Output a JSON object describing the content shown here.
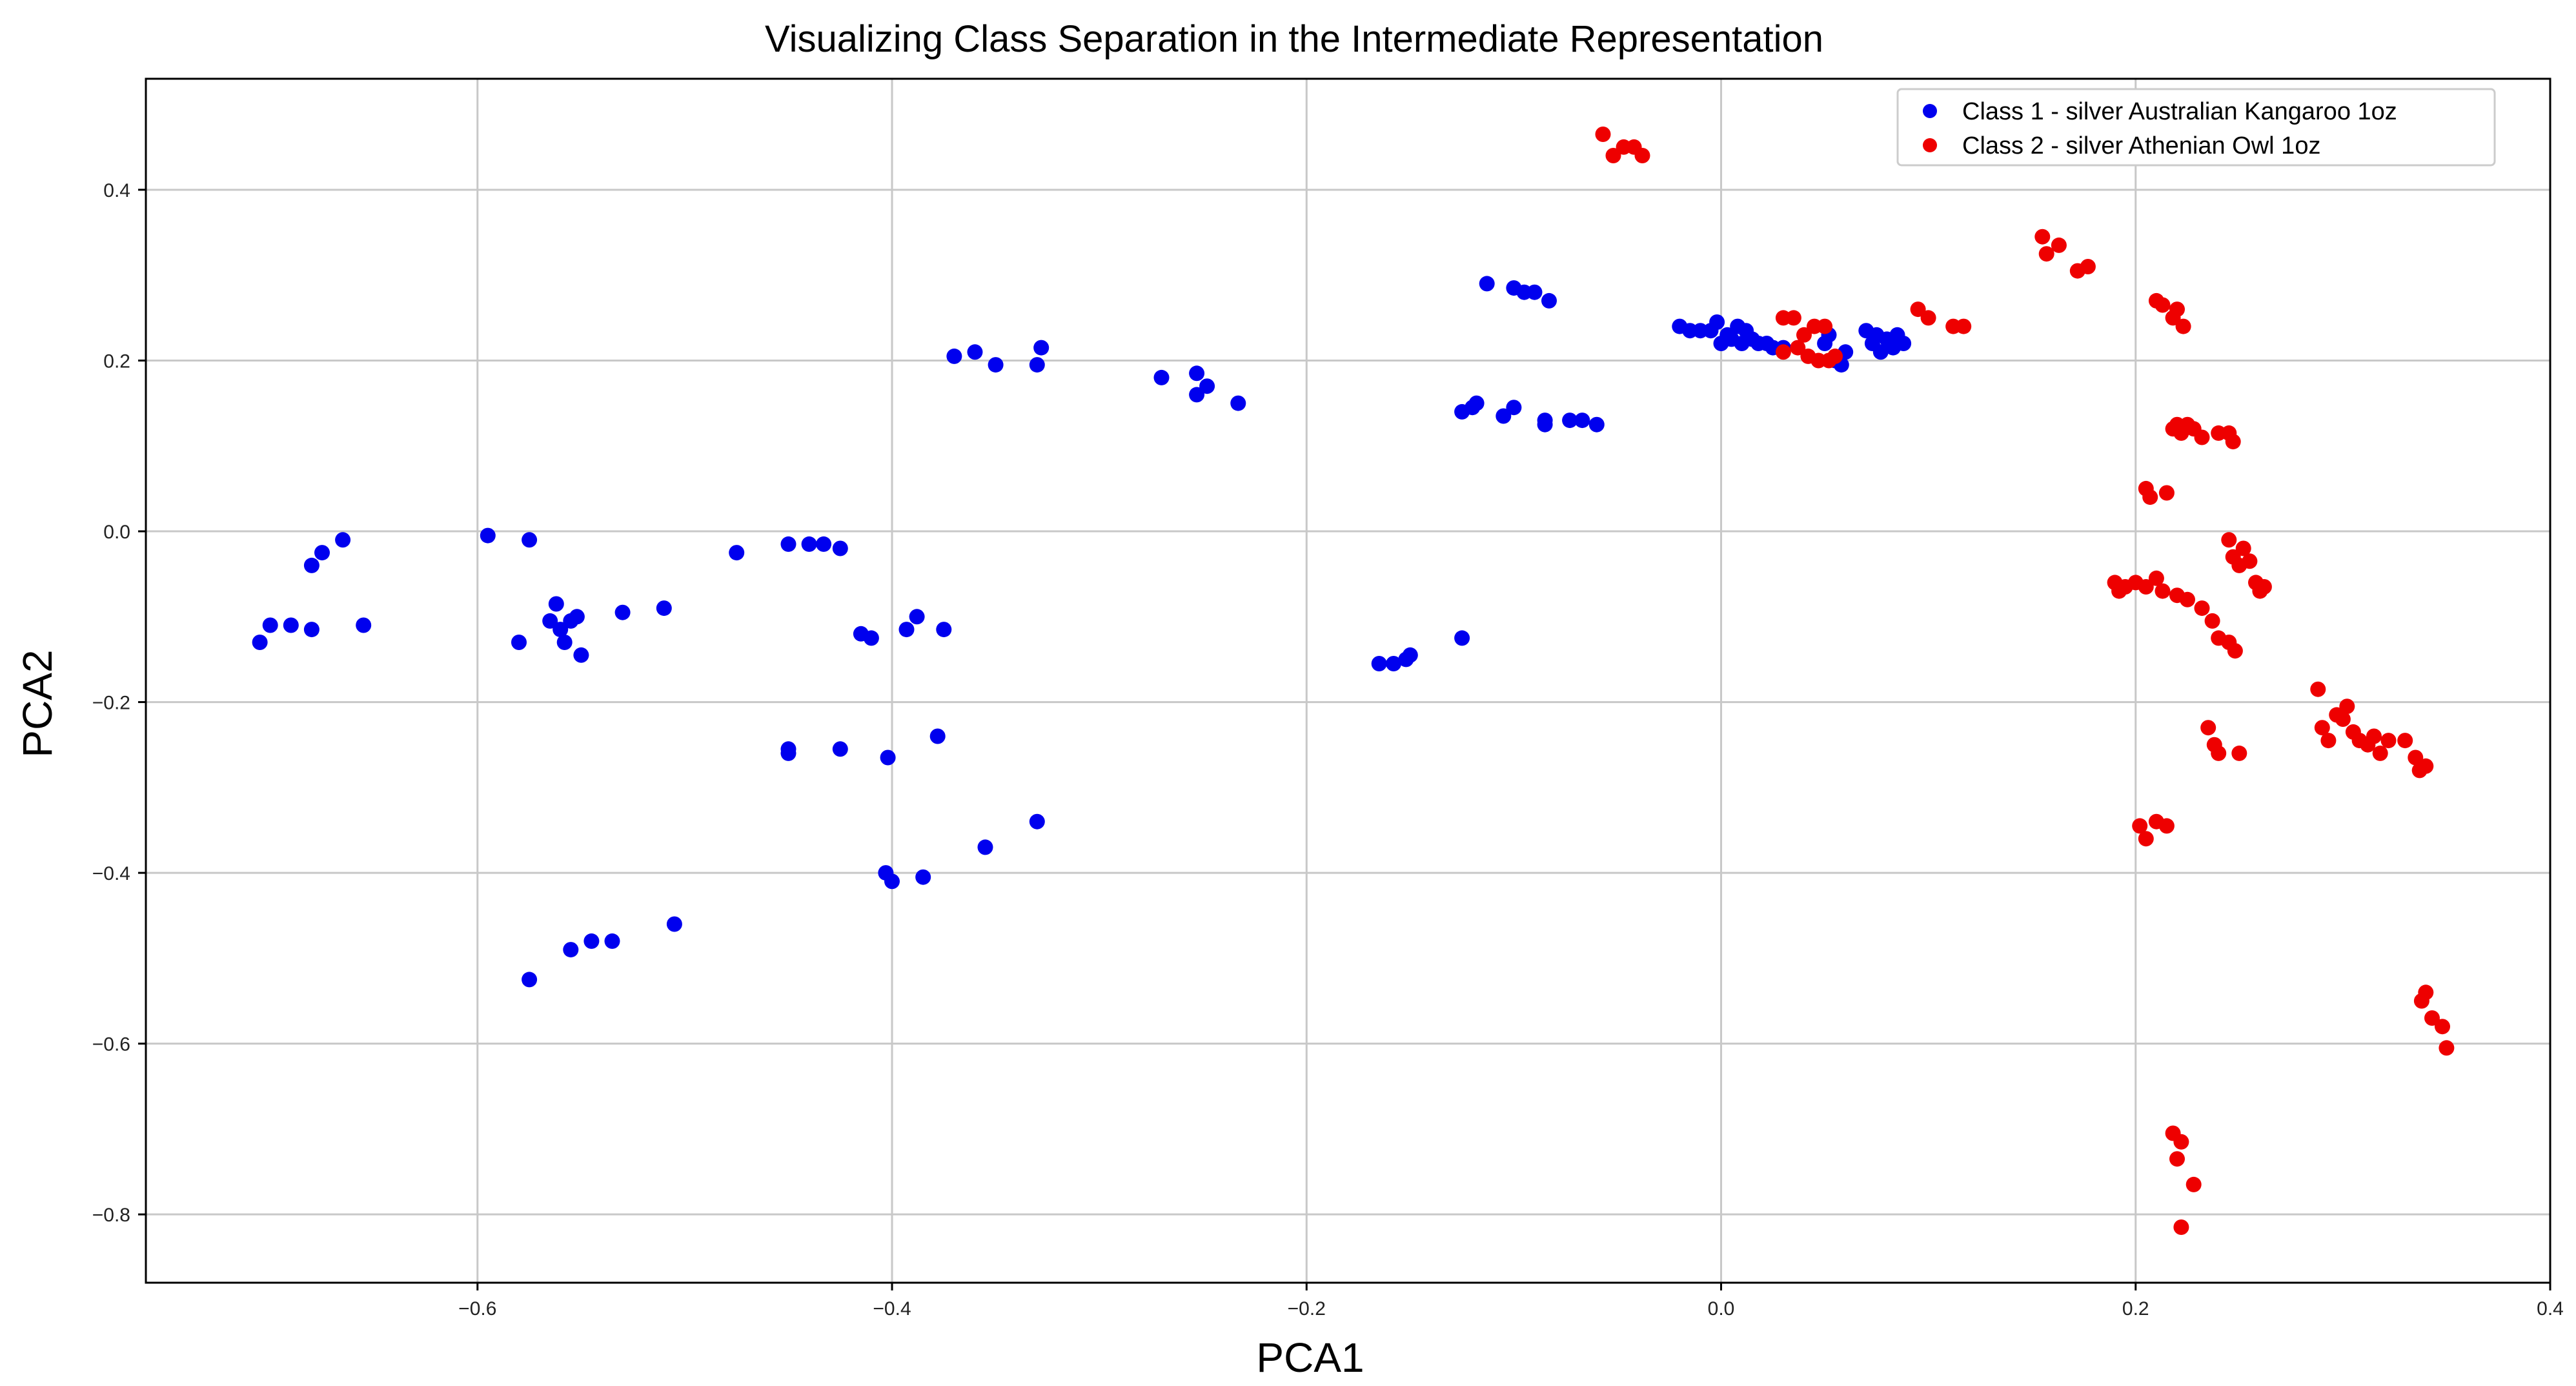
{
  "chart_data": {
    "type": "scatter",
    "title": "Visualizing Class Separation in the Intermediate Representation",
    "xlabel": "PCA1",
    "ylabel": "PCA2",
    "xlim": [
      -0.76,
      0.4
    ],
    "ylim": [
      -0.88,
      0.53
    ],
    "xticks": [
      -0.6,
      -0.4,
      -0.2,
      0.0,
      0.2,
      0.4
    ],
    "xtick_labels": [
      "−0.6",
      "−0.4",
      "−0.2",
      "0.0",
      "0.2",
      "0.4"
    ],
    "yticks": [
      0.4,
      0.2,
      0.0,
      -0.2,
      -0.4,
      -0.6,
      -0.8
    ],
    "ytick_labels": [
      "0.4",
      "0.2",
      "0.0",
      "−0.2",
      "−0.4",
      "−0.6",
      "−0.8"
    ],
    "grid": true,
    "legend_position": "top-right",
    "series": [
      {
        "name": "Class 1 - silver Australian Kangaroo 1oz",
        "color": "#0000ee",
        "points": [
          [
            -0.705,
            -0.13
          ],
          [
            -0.7,
            -0.11
          ],
          [
            -0.69,
            -0.11
          ],
          [
            -0.68,
            -0.115
          ],
          [
            -0.68,
            -0.04
          ],
          [
            -0.675,
            -0.025
          ],
          [
            -0.665,
            -0.01
          ],
          [
            -0.655,
            -0.11
          ],
          [
            -0.595,
            -0.005
          ],
          [
            -0.58,
            -0.13
          ],
          [
            -0.575,
            -0.01
          ],
          [
            -0.565,
            -0.105
          ],
          [
            -0.562,
            -0.085
          ],
          [
            -0.56,
            -0.115
          ],
          [
            -0.558,
            -0.13
          ],
          [
            -0.555,
            -0.105
          ],
          [
            -0.552,
            -0.1
          ],
          [
            -0.55,
            -0.145
          ],
          [
            -0.53,
            -0.095
          ],
          [
            -0.51,
            -0.09
          ],
          [
            -0.475,
            -0.025
          ],
          [
            -0.45,
            -0.015
          ],
          [
            -0.44,
            -0.015
          ],
          [
            -0.433,
            -0.015
          ],
          [
            -0.425,
            -0.02
          ],
          [
            -0.415,
            -0.12
          ],
          [
            -0.41,
            -0.125
          ],
          [
            -0.393,
            -0.115
          ],
          [
            -0.388,
            -0.1
          ],
          [
            -0.375,
            -0.115
          ],
          [
            -0.45,
            -0.26
          ],
          [
            -0.45,
            -0.255
          ],
          [
            -0.425,
            -0.255
          ],
          [
            -0.402,
            -0.265
          ],
          [
            -0.378,
            -0.24
          ],
          [
            -0.355,
            -0.37
          ],
          [
            -0.33,
            -0.34
          ],
          [
            -0.403,
            -0.4
          ],
          [
            -0.4,
            -0.41
          ],
          [
            -0.385,
            -0.405
          ],
          [
            -0.575,
            -0.525
          ],
          [
            -0.555,
            -0.49
          ],
          [
            -0.545,
            -0.48
          ],
          [
            -0.535,
            -0.48
          ],
          [
            -0.505,
            -0.46
          ],
          [
            -0.37,
            0.205
          ],
          [
            -0.36,
            0.21
          ],
          [
            -0.35,
            0.195
          ],
          [
            -0.33,
            0.195
          ],
          [
            -0.328,
            0.215
          ],
          [
            -0.27,
            0.18
          ],
          [
            -0.253,
            0.185
          ],
          [
            -0.253,
            0.16
          ],
          [
            -0.248,
            0.17
          ],
          [
            -0.233,
            0.15
          ],
          [
            -0.165,
            -0.155
          ],
          [
            -0.158,
            -0.155
          ],
          [
            -0.152,
            -0.15
          ],
          [
            -0.15,
            -0.145
          ],
          [
            -0.125,
            -0.125
          ],
          [
            -0.125,
            0.14
          ],
          [
            -0.12,
            0.145
          ],
          [
            -0.118,
            0.15
          ],
          [
            -0.105,
            0.135
          ],
          [
            -0.1,
            0.145
          ],
          [
            -0.085,
            0.125
          ],
          [
            -0.085,
            0.13
          ],
          [
            -0.073,
            0.13
          ],
          [
            -0.067,
            0.13
          ],
          [
            -0.06,
            0.125
          ],
          [
            -0.113,
            0.29
          ],
          [
            -0.1,
            0.285
          ],
          [
            -0.095,
            0.28
          ],
          [
            -0.09,
            0.28
          ],
          [
            -0.083,
            0.27
          ],
          [
            -0.02,
            0.24
          ],
          [
            -0.015,
            0.235
          ],
          [
            -0.01,
            0.235
          ],
          [
            -0.005,
            0.235
          ],
          [
            -0.002,
            0.245
          ],
          [
            0.0,
            0.22
          ],
          [
            0.003,
            0.23
          ],
          [
            0.005,
            0.225
          ],
          [
            0.008,
            0.24
          ],
          [
            0.01,
            0.22
          ],
          [
            0.012,
            0.235
          ],
          [
            0.015,
            0.225
          ],
          [
            0.018,
            0.22
          ],
          [
            0.022,
            0.22
          ],
          [
            0.025,
            0.215
          ],
          [
            0.03,
            0.215
          ],
          [
            0.05,
            0.22
          ],
          [
            0.052,
            0.23
          ],
          [
            0.055,
            0.2
          ],
          [
            0.058,
            0.195
          ],
          [
            0.06,
            0.21
          ],
          [
            0.07,
            0.235
          ],
          [
            0.073,
            0.22
          ],
          [
            0.075,
            0.23
          ],
          [
            0.077,
            0.21
          ],
          [
            0.08,
            0.225
          ],
          [
            0.083,
            0.215
          ],
          [
            0.085,
            0.23
          ],
          [
            0.088,
            0.22
          ]
        ]
      },
      {
        "name": "Class 2 - silver Athenian Owl 1oz",
        "color": "#ee0000",
        "points": [
          [
            -0.057,
            0.465
          ],
          [
            -0.052,
            0.44
          ],
          [
            -0.047,
            0.45
          ],
          [
            -0.042,
            0.45
          ],
          [
            -0.038,
            0.44
          ],
          [
            0.03,
            0.25
          ],
          [
            0.03,
            0.21
          ],
          [
            0.035,
            0.25
          ],
          [
            0.037,
            0.215
          ],
          [
            0.04,
            0.23
          ],
          [
            0.042,
            0.205
          ],
          [
            0.045,
            0.24
          ],
          [
            0.047,
            0.2
          ],
          [
            0.05,
            0.24
          ],
          [
            0.052,
            0.2
          ],
          [
            0.055,
            0.205
          ],
          [
            0.095,
            0.26
          ],
          [
            0.1,
            0.25
          ],
          [
            0.112,
            0.24
          ],
          [
            0.117,
            0.24
          ],
          [
            0.155,
            0.345
          ],
          [
            0.157,
            0.325
          ],
          [
            0.163,
            0.335
          ],
          [
            0.172,
            0.305
          ],
          [
            0.177,
            0.31
          ],
          [
            0.21,
            0.27
          ],
          [
            0.213,
            0.265
          ],
          [
            0.218,
            0.25
          ],
          [
            0.22,
            0.26
          ],
          [
            0.223,
            0.24
          ],
          [
            0.205,
            0.05
          ],
          [
            0.207,
            0.04
          ],
          [
            0.215,
            0.045
          ],
          [
            0.218,
            0.12
          ],
          [
            0.22,
            0.125
          ],
          [
            0.222,
            0.115
          ],
          [
            0.225,
            0.125
          ],
          [
            0.228,
            0.12
          ],
          [
            0.232,
            0.11
          ],
          [
            0.24,
            0.115
          ],
          [
            0.245,
            0.115
          ],
          [
            0.247,
            0.105
          ],
          [
            0.245,
            -0.01
          ],
          [
            0.247,
            -0.03
          ],
          [
            0.25,
            -0.04
          ],
          [
            0.252,
            -0.02
          ],
          [
            0.255,
            -0.035
          ],
          [
            0.258,
            -0.06
          ],
          [
            0.26,
            -0.07
          ],
          [
            0.262,
            -0.065
          ],
          [
            0.19,
            -0.06
          ],
          [
            0.192,
            -0.07
          ],
          [
            0.195,
            -0.065
          ],
          [
            0.2,
            -0.06
          ],
          [
            0.205,
            -0.065
          ],
          [
            0.21,
            -0.055
          ],
          [
            0.213,
            -0.07
          ],
          [
            0.22,
            -0.075
          ],
          [
            0.225,
            -0.08
          ],
          [
            0.232,
            -0.09
          ],
          [
            0.237,
            -0.105
          ],
          [
            0.24,
            -0.125
          ],
          [
            0.245,
            -0.13
          ],
          [
            0.248,
            -0.14
          ],
          [
            0.235,
            -0.23
          ],
          [
            0.238,
            -0.25
          ],
          [
            0.24,
            -0.26
          ],
          [
            0.25,
            -0.26
          ],
          [
            0.288,
            -0.185
          ],
          [
            0.29,
            -0.23
          ],
          [
            0.293,
            -0.245
          ],
          [
            0.297,
            -0.215
          ],
          [
            0.3,
            -0.22
          ],
          [
            0.302,
            -0.205
          ],
          [
            0.305,
            -0.235
          ],
          [
            0.308,
            -0.245
          ],
          [
            0.312,
            -0.25
          ],
          [
            0.315,
            -0.24
          ],
          [
            0.318,
            -0.26
          ],
          [
            0.322,
            -0.245
          ],
          [
            0.33,
            -0.245
          ],
          [
            0.335,
            -0.265
          ],
          [
            0.337,
            -0.28
          ],
          [
            0.34,
            -0.275
          ],
          [
            0.202,
            -0.345
          ],
          [
            0.205,
            -0.36
          ],
          [
            0.21,
            -0.34
          ],
          [
            0.215,
            -0.345
          ],
          [
            0.338,
            -0.55
          ],
          [
            0.34,
            -0.54
          ],
          [
            0.343,
            -0.57
          ],
          [
            0.348,
            -0.58
          ],
          [
            0.35,
            -0.605
          ],
          [
            0.218,
            -0.705
          ],
          [
            0.22,
            -0.735
          ],
          [
            0.222,
            -0.715
          ],
          [
            0.228,
            -0.765
          ],
          [
            0.222,
            -0.815
          ]
        ]
      }
    ]
  }
}
